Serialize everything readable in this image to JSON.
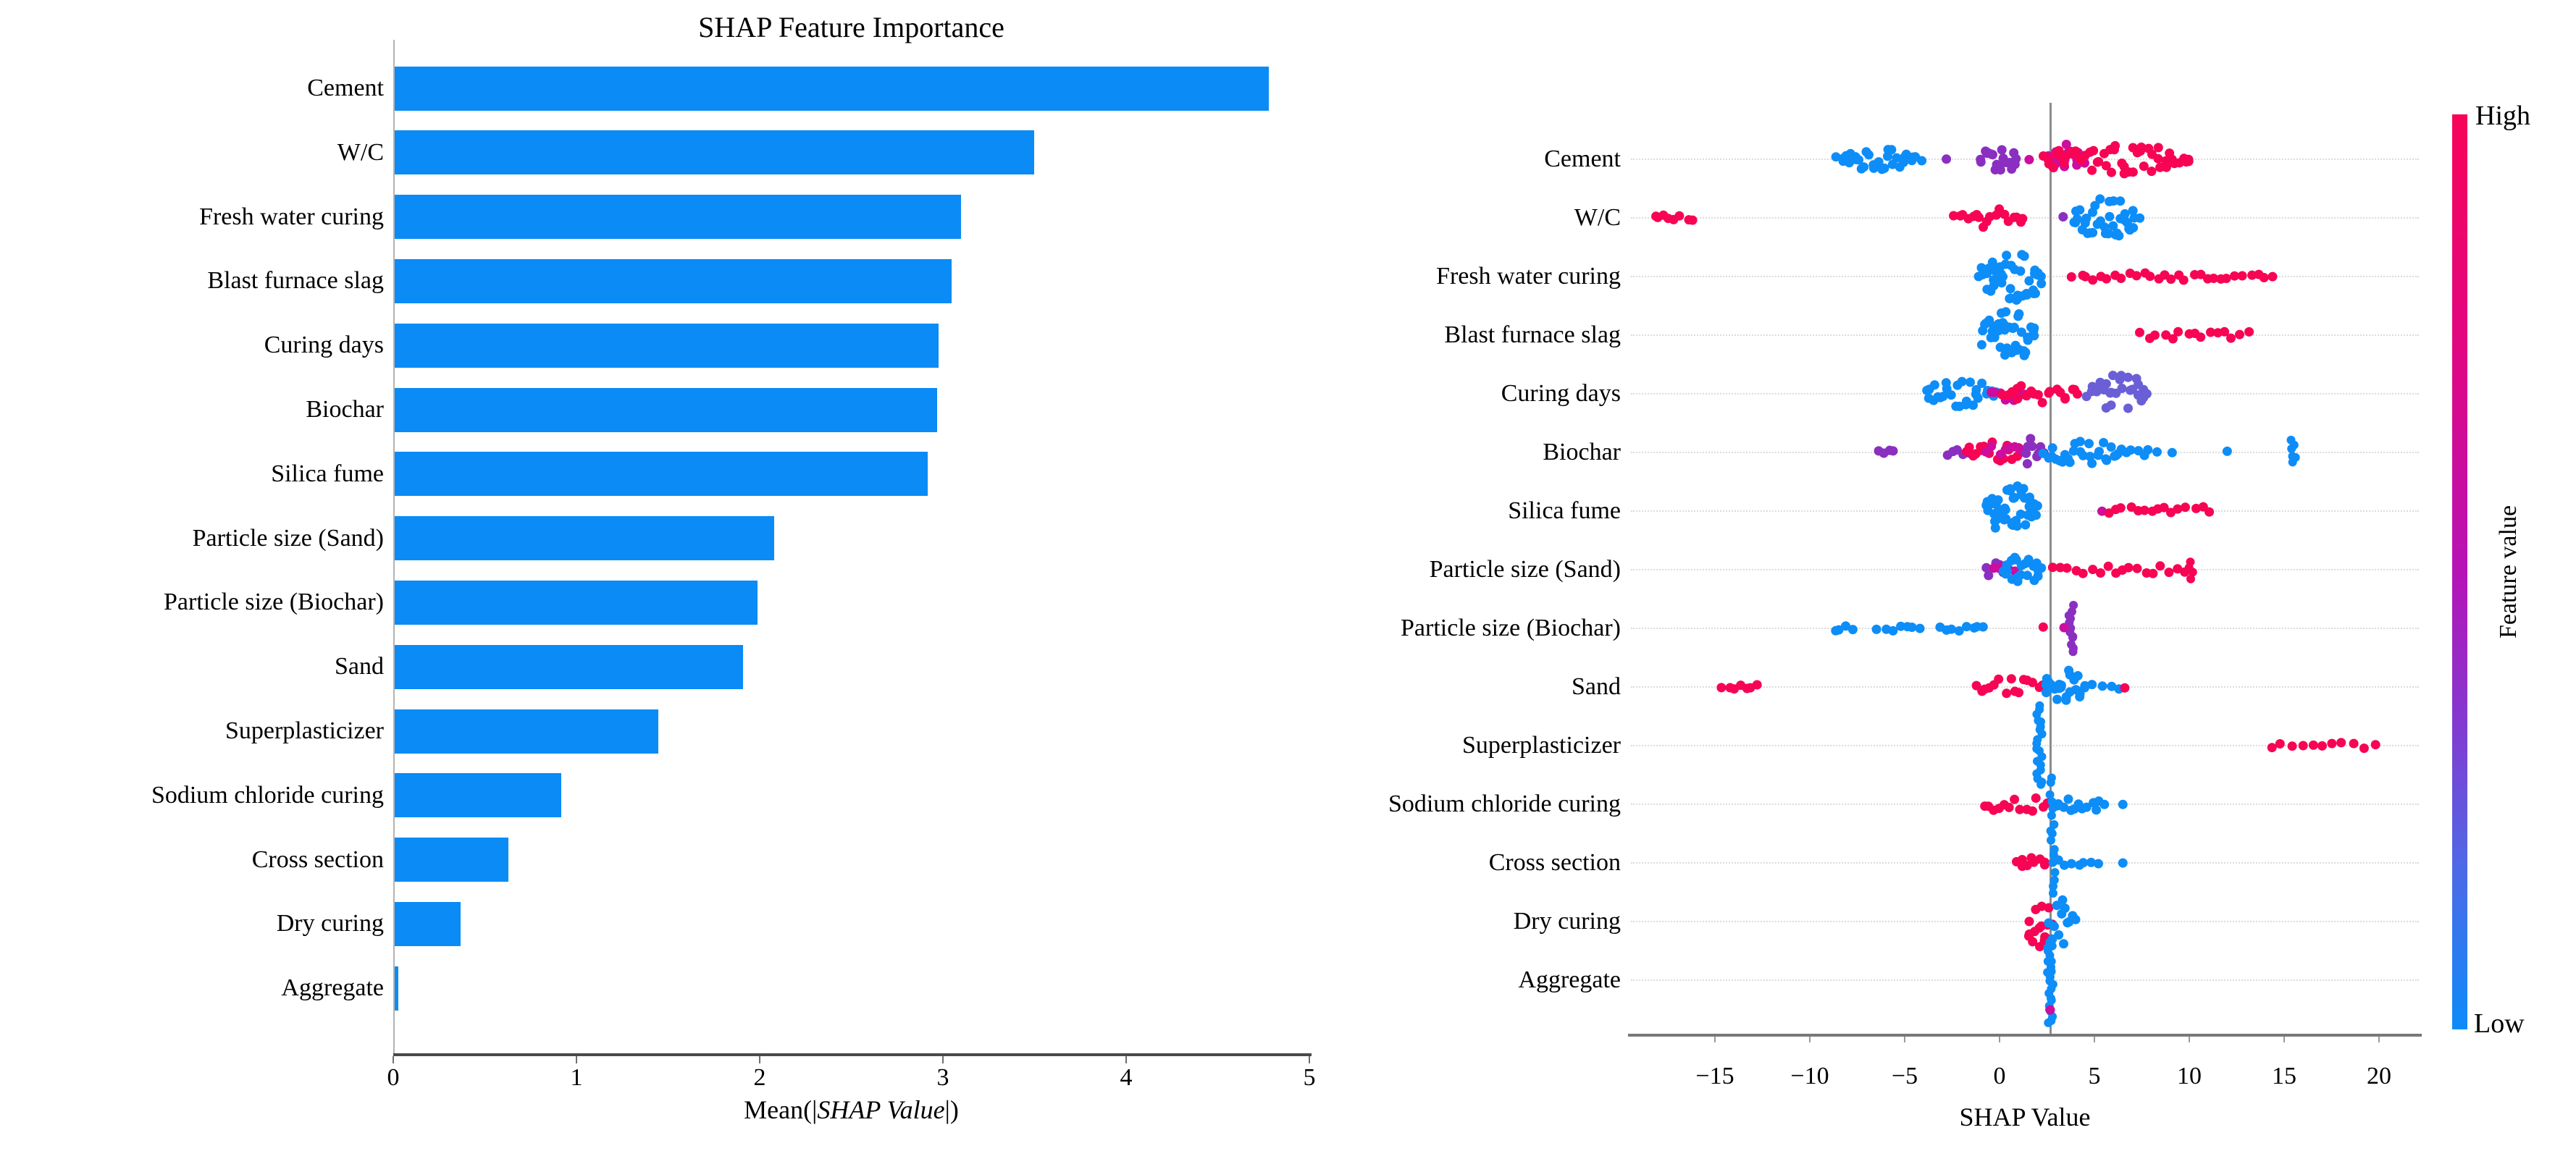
{
  "chart_data": [
    {
      "type": "bar",
      "title": "SHAP Feature Importance",
      "xlabel": "Mean(|SHAP Value|)",
      "xlabel_parts": {
        "prefix": "Mean(|",
        "italic": "SHAP Value",
        "suffix": "|)"
      },
      "categories": [
        "Cement",
        "W/C",
        "Fresh water curing",
        "Blast furnace slag",
        "Curing days",
        "Biochar",
        "Silica fume",
        "Particle size (Sand)",
        "Particle size (Biochar)",
        "Sand",
        "Superplasticizer",
        "Sodium chloride curing",
        "Cross section",
        "Dry curing",
        "Aggregate"
      ],
      "values": [
        4.77,
        3.49,
        3.09,
        3.04,
        2.97,
        2.96,
        2.91,
        2.07,
        1.98,
        1.9,
        1.44,
        0.91,
        0.62,
        0.36,
        0.02
      ],
      "xlim": [
        0,
        5
      ],
      "x_ticks": [
        0,
        1,
        2,
        3,
        4,
        5
      ],
      "bar_color": "#0a8bf6",
      "grid": false
    },
    {
      "type": "beeswarm",
      "xlabel": "SHAP Value",
      "xlim": [
        -19.6,
        22.3
      ],
      "x_ticks": [
        -15,
        -10,
        -5,
        0,
        5,
        10,
        15,
        20
      ],
      "reference_line_x": 2.67,
      "legend_position": "right-colorbar",
      "colorbar": {
        "high_label": "High",
        "low_label": "Low",
        "axis_label": "Feature value",
        "high_color": "#f70458",
        "mid_color": "#b613b6",
        "low_color": "#0d8bf9"
      },
      "point_colors": {
        "blue": "#0d8df8",
        "red": "#f70454",
        "magenta": "#cc0d9e",
        "purple": "#8a2fc0",
        "slate": "#6a5fd6"
      },
      "rows": [
        {
          "feature": "Cement",
          "clusters": [
            {
              "s": "blob",
              "a": -8.5,
              "b": -4.4,
              "c": "blue",
              "n": 30,
              "w": 15
            },
            {
              "s": "dot",
              "a": -4.1,
              "c": "blue"
            },
            {
              "s": "dot",
              "a": -2.8,
              "c": "purple"
            },
            {
              "s": "blob",
              "a": -1.0,
              "b": 0.95,
              "c": "purple",
              "n": 20,
              "w": 20
            },
            {
              "s": "dot",
              "a": 1.56,
              "c": "magenta"
            },
            {
              "s": "blob",
              "a": 2.6,
              "b": 4.5,
              "c": "magenta",
              "n": 16,
              "w": 22
            },
            {
              "s": "blob",
              "a": 2.3,
              "b": 9.6,
              "c": "red",
              "n": 50,
              "w": 22
            },
            {
              "s": "strip",
              "a": 9.6,
              "b": 10.0,
              "c": "red",
              "n": 4,
              "w": 8
            }
          ]
        },
        {
          "feature": "W/C",
          "clusters": [
            {
              "s": "strip",
              "a": -18.2,
              "b": -16.2,
              "c": "red",
              "n": 8,
              "w": 7
            },
            {
              "s": "blob",
              "a": -2.3,
              "b": 1.3,
              "c": "red",
              "n": 18,
              "w": 13
            },
            {
              "s": "dot",
              "a": 3.35,
              "c": "purple"
            },
            {
              "s": "blob",
              "a": 3.9,
              "b": 7.3,
              "c": "blue",
              "n": 38,
              "w": 30
            }
          ]
        },
        {
          "feature": "Fresh water curing",
          "clusters": [
            {
              "s": "blob",
              "a": -1.0,
              "b": 2.3,
              "c": "blue",
              "n": 42,
              "w": 34
            },
            {
              "s": "strip",
              "a": 3.9,
              "b": 12.4,
              "c": "red",
              "n": 24,
              "w": 9
            },
            {
              "s": "strip",
              "a": 12.9,
              "b": 14.4,
              "c": "red",
              "n": 5,
              "w": 7
            }
          ]
        },
        {
          "feature": "Blast furnace slag",
          "clusters": [
            {
              "s": "blob",
              "a": -0.9,
              "b": 1.9,
              "c": "blue",
              "n": 42,
              "w": 34
            },
            {
              "s": "strip",
              "a": 7.5,
              "b": 13.1,
              "c": "red",
              "n": 15,
              "w": 9
            }
          ]
        },
        {
          "feature": "Curing days",
          "clusters": [
            {
              "s": "blob",
              "a": -3.9,
              "b": -0.2,
              "c": "blue",
              "n": 28,
              "w": 19
            },
            {
              "s": "blob",
              "a": -0.4,
              "b": 1.4,
              "c": "magenta",
              "n": 9,
              "w": 12
            },
            {
              "s": "blob",
              "a": 0.2,
              "b": 4.2,
              "c": "red",
              "n": 20,
              "w": 13
            },
            {
              "s": "blob",
              "a": 4.7,
              "b": 7.8,
              "c": "slate",
              "n": 28,
              "w": 26
            }
          ]
        },
        {
          "feature": "Biochar",
          "clusters": [
            {
              "s": "strip",
              "a": -6.4,
              "b": -5.6,
              "c": "purple",
              "n": 4,
              "w": 6
            },
            {
              "s": "strip",
              "a": -2.8,
              "b": -1.7,
              "c": "purple",
              "n": 5,
              "w": 8
            },
            {
              "s": "blob",
              "a": -1.8,
              "b": 1.2,
              "c": "red",
              "n": 18,
              "w": 15
            },
            {
              "s": "blob",
              "a": -0.6,
              "b": 1.4,
              "c": "magenta",
              "n": 8,
              "w": 13
            },
            {
              "s": "blob",
              "a": 1.3,
              "b": 2.3,
              "c": "purple",
              "n": 9,
              "w": 20
            },
            {
              "s": "blob",
              "a": 2.4,
              "b": 6.2,
              "c": "blue",
              "n": 26,
              "w": 17
            },
            {
              "s": "strip",
              "a": 6.2,
              "b": 7.8,
              "c": "blue",
              "n": 7,
              "w": 9
            },
            {
              "s": "dot",
              "a": 8.3,
              "c": "blue"
            },
            {
              "s": "dot",
              "a": 9.1,
              "c": "blue"
            },
            {
              "s": "dot",
              "a": 12.0,
              "c": "blue"
            },
            {
              "s": "stack",
              "a": 15.5,
              "c": "blue",
              "n": 6,
              "w": 16
            }
          ]
        },
        {
          "feature": "Silica fume",
          "clusters": [
            {
              "s": "blob",
              "a": -0.7,
              "b": 2.0,
              "c": "blue",
              "n": 48,
              "w": 36
            },
            {
              "s": "dot",
              "a": 5.4,
              "c": "magenta"
            },
            {
              "s": "strip",
              "a": 5.7,
              "b": 11.0,
              "c": "red",
              "n": 15,
              "w": 10
            }
          ]
        },
        {
          "feature": "Particle size (Sand)",
          "clusters": [
            {
              "s": "blob",
              "a": -0.7,
              "b": 0.5,
              "c": "purple",
              "n": 7,
              "w": 11
            },
            {
              "s": "blob",
              "a": -0.2,
              "b": 0.8,
              "c": "magenta",
              "n": 5,
              "w": 9
            },
            {
              "s": "blob",
              "a": 0.2,
              "b": 2.2,
              "c": "blue",
              "n": 22,
              "w": 21
            },
            {
              "s": "strip",
              "a": 2.8,
              "b": 9.8,
              "c": "red",
              "n": 18,
              "w": 9
            },
            {
              "s": "stack",
              "a": 10.1,
              "c": "red",
              "n": 4,
              "w": 13
            }
          ]
        },
        {
          "feature": "Particle size (Biochar)",
          "clusters": [
            {
              "s": "strip",
              "a": -8.7,
              "b": -7.7,
              "c": "blue",
              "n": 4,
              "w": 6
            },
            {
              "s": "strip",
              "a": -6.4,
              "b": -4.2,
              "c": "blue",
              "n": 7,
              "w": 6
            },
            {
              "s": "strip",
              "a": -3.1,
              "b": -0.8,
              "c": "blue",
              "n": 8,
              "w": 6
            },
            {
              "s": "dot",
              "a": 2.3,
              "c": "red"
            },
            {
              "s": "stack",
              "a": 3.8,
              "c": "purple",
              "n": 13,
              "w": 30
            },
            {
              "s": "dot",
              "a": 3.4,
              "c": "magenta"
            }
          ]
        },
        {
          "feature": "Sand",
          "clusters": [
            {
              "s": "strip",
              "a": -14.6,
              "b": -12.7,
              "c": "red",
              "n": 7,
              "w": 7
            },
            {
              "s": "blob",
              "a": -1.2,
              "b": 2.3,
              "c": "red",
              "n": 15,
              "w": 12
            },
            {
              "s": "blob",
              "a": 2.4,
              "b": 4.4,
              "c": "blue",
              "n": 22,
              "w": 24
            },
            {
              "s": "strip",
              "a": 4.6,
              "b": 6.2,
              "c": "blue",
              "n": 5,
              "w": 7
            },
            {
              "s": "dot",
              "a": 6.6,
              "c": "red"
            }
          ]
        },
        {
          "feature": "Superplasticizer",
          "clusters": [
            {
              "s": "stack",
              "a": 2.1,
              "c": "blue",
              "n": 20,
              "w": 55
            },
            {
              "s": "strip",
              "a": 14.3,
              "b": 19.7,
              "c": "red",
              "n": 11,
              "w": 7
            }
          ]
        },
        {
          "feature": "Sodium chloride curing",
          "clusters": [
            {
              "s": "blob",
              "a": -0.8,
              "b": 2.5,
              "c": "red",
              "n": 13,
              "w": 12
            },
            {
              "s": "stack",
              "a": 2.8,
              "c": "blue",
              "n": 8,
              "w": 38
            },
            {
              "s": "blob",
              "a": 3.0,
              "b": 5.5,
              "c": "blue",
              "n": 13,
              "w": 11
            },
            {
              "s": "dot",
              "a": 6.5,
              "c": "blue"
            }
          ]
        },
        {
          "feature": "Cross section",
          "clusters": [
            {
              "s": "blob",
              "a": 0.9,
              "b": 2.5,
              "c": "red",
              "n": 9,
              "w": 11
            },
            {
              "s": "stack",
              "a": 2.8,
              "c": "blue",
              "n": 9,
              "w": 42
            },
            {
              "s": "strip",
              "a": 3.2,
              "b": 5.2,
              "c": "blue",
              "n": 7,
              "w": 7
            },
            {
              "s": "dot",
              "a": 6.5,
              "c": "blue"
            }
          ]
        },
        {
          "feature": "Dry curing",
          "clusters": [
            {
              "s": "blob",
              "a": 1.5,
              "b": 2.7,
              "c": "red",
              "n": 16,
              "w": 40
            },
            {
              "s": "blob",
              "a": 2.7,
              "b": 3.9,
              "c": "blue",
              "n": 13,
              "w": 36
            }
          ]
        },
        {
          "feature": "Aggregate",
          "clusters": [
            {
              "s": "stack",
              "a": 2.67,
              "c": "blue",
              "n": 24,
              "w": 60
            },
            {
              "s": "dot",
              "a": 2.67,
              "c": "magenta",
              "dy": 42
            }
          ]
        }
      ]
    }
  ]
}
